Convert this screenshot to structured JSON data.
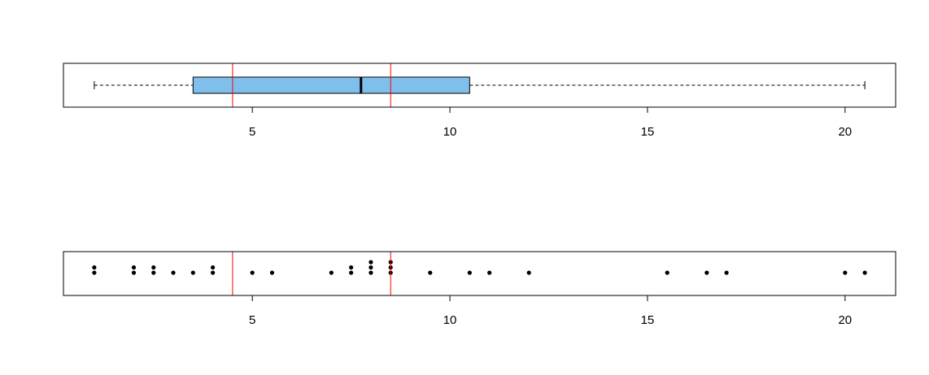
{
  "chart_data": [
    {
      "type": "boxplot",
      "min": 1,
      "q1": 3.5,
      "median": 7.75,
      "q3": 10.5,
      "max": 20.5,
      "color": "#7fbfeb",
      "xlim": [
        0.22,
        21.28
      ],
      "xticks": [
        5,
        10,
        15,
        20
      ],
      "vlines": [
        4.5,
        8.5
      ],
      "vline_color": "#ff0000"
    },
    {
      "type": "strip",
      "method": "stack",
      "values": [
        1,
        1,
        2,
        2,
        2.5,
        2.5,
        3,
        3.5,
        4,
        4,
        5,
        5.5,
        7,
        7.5,
        7.5,
        8,
        8,
        8,
        8.5,
        8.5,
        8.5,
        9.5,
        10.5,
        11,
        12,
        15.5,
        16.5,
        17,
        20,
        20.5
      ],
      "color": "#000000",
      "xlim": [
        0.22,
        21.28
      ],
      "xticks": [
        5,
        10,
        15,
        20
      ],
      "vlines": [
        4.5,
        8.5
      ],
      "vline_color": "#ff0000"
    }
  ]
}
